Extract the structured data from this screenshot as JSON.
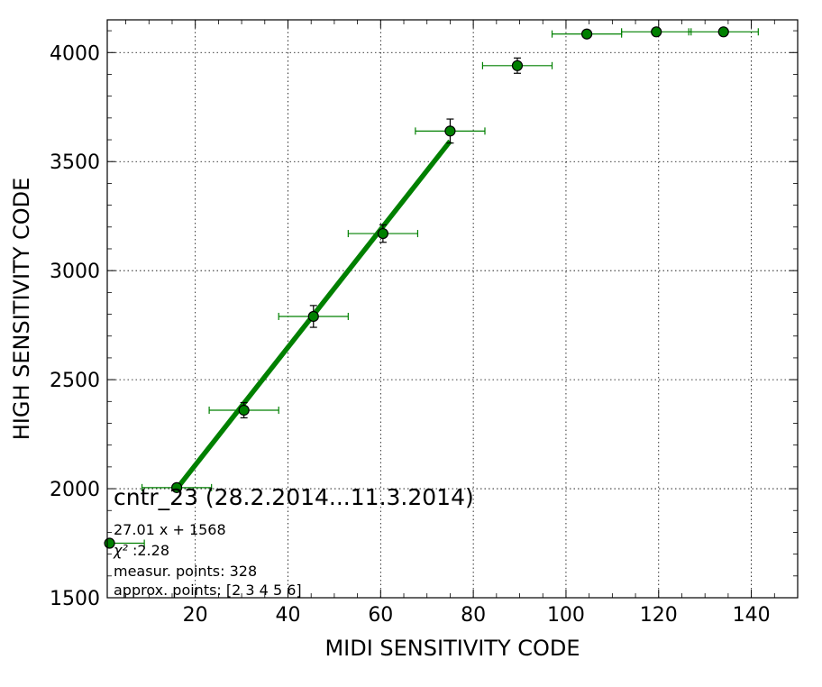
{
  "chart_data": {
    "type": "scatter",
    "xlabel": "MIDI SENSITIVITY CODE",
    "ylabel": "HIGH SENSITIVITY CODE",
    "xlim": [
      1,
      150
    ],
    "ylim": [
      1500,
      4150
    ],
    "xticks": [
      20,
      40,
      60,
      80,
      100,
      120,
      140
    ],
    "yticks": [
      1500,
      2000,
      2500,
      3000,
      3500,
      4000
    ],
    "grid": true,
    "color": "#008000",
    "points": [
      {
        "x": 1.5,
        "y": 1750,
        "xerr": 7.5,
        "yerr": 0
      },
      {
        "x": 16,
        "y": 2005,
        "xerr": 7.5,
        "yerr": 0
      },
      {
        "x": 30.5,
        "y": 2360,
        "xerr": 7.5,
        "yerr": 35
      },
      {
        "x": 45.5,
        "y": 2790,
        "xerr": 7.5,
        "yerr": 50
      },
      {
        "x": 60.5,
        "y": 3170,
        "xerr": 7.5,
        "yerr": 40
      },
      {
        "x": 75,
        "y": 3640,
        "xerr": 7.5,
        "yerr": 55
      },
      {
        "x": 89.5,
        "y": 3940,
        "xerr": 7.5,
        "yerr": 35
      },
      {
        "x": 104.5,
        "y": 4085,
        "xerr": 7.5,
        "yerr": 0
      },
      {
        "x": 119.5,
        "y": 4095,
        "xerr": 7.5,
        "yerr": 0
      },
      {
        "x": 134,
        "y": 4095,
        "xerr": 7.5,
        "yerr": 0
      }
    ],
    "fit": {
      "slope": 27.01,
      "intercept": 1568,
      "x_range": [
        16,
        75
      ]
    },
    "annotations": {
      "title": "cntr_23 (28.2.2014...11.3.2014)",
      "equation": "27.01 x + 1568",
      "chi2_label": "χ²",
      "chi2_value": " :2.28",
      "measur_points": "measur. points: 328",
      "approx_points": "approx. points: [2 3 4 5 6]"
    }
  }
}
